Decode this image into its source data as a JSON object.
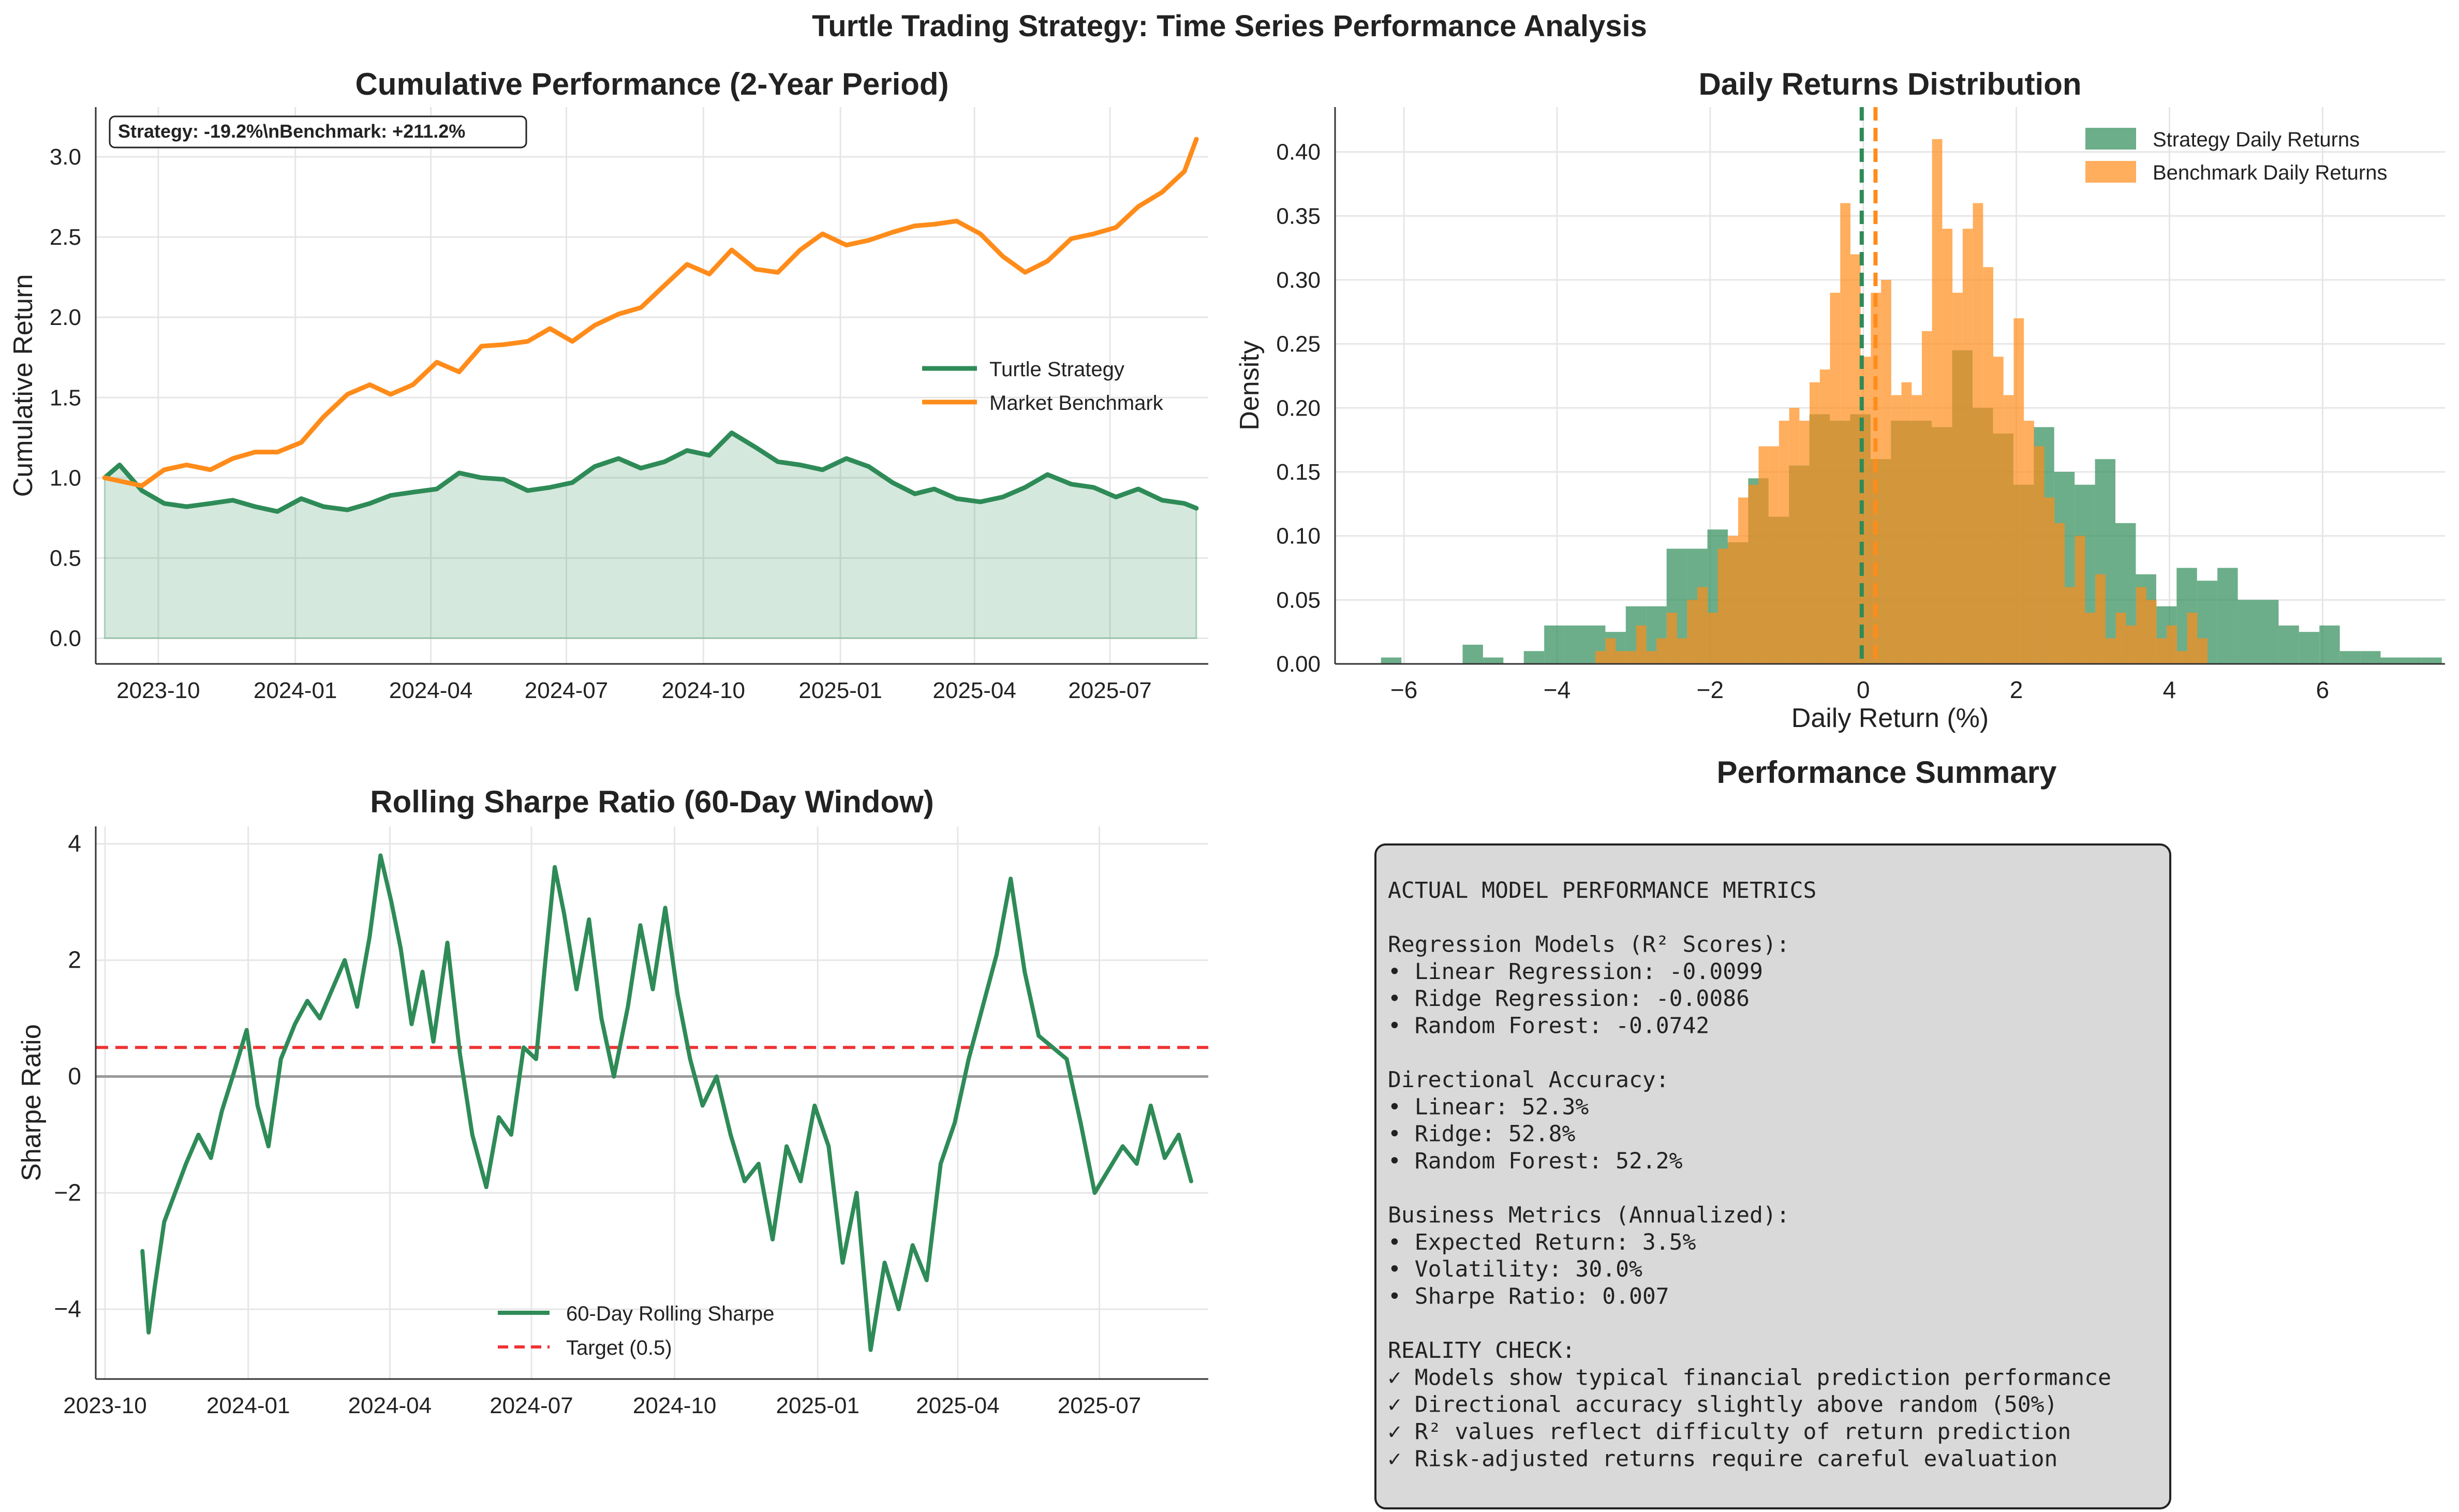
{
  "figure_title": "Turtle Trading Strategy: Time Series Performance Analysis",
  "colors": {
    "strategy": "#2e8b57",
    "benchmark": "#ff8c1a",
    "strategy_fill": "#2e8b57",
    "target": "#ee3333",
    "grid": "#e6e6e6",
    "summary_bg": "#d9d9d9"
  },
  "chart_data": [
    {
      "id": "cumulative",
      "type": "line",
      "title": "Cumulative Performance (2-Year Period)",
      "xlabel": "",
      "ylabel": "Cumulative Return",
      "x_range": [
        "2023-08-20",
        "2025-09-05"
      ],
      "ylim": [
        -0.16,
        3.31
      ],
      "yticks": [
        0.0,
        0.5,
        1.0,
        1.5,
        2.0,
        2.5,
        3.0
      ],
      "ytick_labels": [
        "0.0",
        "0.5",
        "1.0",
        "1.5",
        "2.0",
        "2.5",
        "3.0"
      ],
      "xticks": [
        "2023-10-01",
        "2024-01-01",
        "2024-04-01",
        "2024-07-01",
        "2024-10-01",
        "2025-01-01",
        "2025-04-01",
        "2025-07-01"
      ],
      "xtick_labels": [
        "2023-10",
        "2024-01",
        "2024-04",
        "2024-07",
        "2024-10",
        "2025-01",
        "2025-04",
        "2025-07"
      ],
      "grid": true,
      "legend": "center-right",
      "annotation": "Strategy: -19.2%\\nBenchmark: +211.2%",
      "series": [
        {
          "name": "Turtle Strategy",
          "color": "#2e8b57",
          "fill": true,
          "x": [
            "2023-08-26",
            "2023-09-05",
            "2023-09-20",
            "2023-10-05",
            "2023-10-20",
            "2023-11-05",
            "2023-11-20",
            "2023-12-05",
            "2023-12-20",
            "2024-01-05",
            "2024-01-20",
            "2024-02-05",
            "2024-02-20",
            "2024-03-05",
            "2024-03-20",
            "2024-04-05",
            "2024-04-20",
            "2024-05-05",
            "2024-05-20",
            "2024-06-05",
            "2024-06-20",
            "2024-07-05",
            "2024-07-20",
            "2024-08-05",
            "2024-08-20",
            "2024-09-05",
            "2024-09-20",
            "2024-10-05",
            "2024-10-20",
            "2024-11-05",
            "2024-11-20",
            "2024-12-05",
            "2024-12-20",
            "2025-01-05",
            "2025-01-20",
            "2025-02-05",
            "2025-02-20",
            "2025-03-05",
            "2025-03-20",
            "2025-04-05",
            "2025-04-20",
            "2025-05-05",
            "2025-05-20",
            "2025-06-05",
            "2025-06-20",
            "2025-07-05",
            "2025-07-20",
            "2025-08-05",
            "2025-08-20",
            "2025-08-28"
          ],
          "y": [
            1.0,
            1.08,
            0.92,
            0.84,
            0.82,
            0.84,
            0.86,
            0.82,
            0.79,
            0.87,
            0.82,
            0.8,
            0.84,
            0.89,
            0.91,
            0.93,
            1.03,
            1.0,
            0.99,
            0.92,
            0.94,
            0.97,
            1.07,
            1.12,
            1.06,
            1.1,
            1.17,
            1.14,
            1.28,
            1.19,
            1.1,
            1.08,
            1.05,
            1.12,
            1.07,
            0.97,
            0.9,
            0.93,
            0.87,
            0.85,
            0.88,
            0.94,
            1.02,
            0.96,
            0.94,
            0.88,
            0.93,
            0.86,
            0.84,
            0.81
          ]
        },
        {
          "name": "Market Benchmark",
          "color": "#ff8c1a",
          "fill": false,
          "x": [
            "2023-08-26",
            "2023-09-05",
            "2023-09-20",
            "2023-10-05",
            "2023-10-20",
            "2023-11-05",
            "2023-11-20",
            "2023-12-05",
            "2023-12-20",
            "2024-01-05",
            "2024-01-20",
            "2024-02-05",
            "2024-02-20",
            "2024-03-05",
            "2024-03-20",
            "2024-04-05",
            "2024-04-20",
            "2024-05-05",
            "2024-05-20",
            "2024-06-05",
            "2024-06-20",
            "2024-07-05",
            "2024-07-20",
            "2024-08-05",
            "2024-08-20",
            "2024-09-05",
            "2024-09-20",
            "2024-10-05",
            "2024-10-20",
            "2024-11-05",
            "2024-11-20",
            "2024-12-05",
            "2024-12-20",
            "2025-01-05",
            "2025-01-20",
            "2025-02-05",
            "2025-02-20",
            "2025-03-05",
            "2025-03-20",
            "2025-04-05",
            "2025-04-20",
            "2025-05-05",
            "2025-05-20",
            "2025-06-05",
            "2025-06-20",
            "2025-07-05",
            "2025-07-20",
            "2025-08-05",
            "2025-08-20",
            "2025-08-28"
          ],
          "y": [
            1.0,
            0.98,
            0.95,
            1.05,
            1.08,
            1.05,
            1.12,
            1.16,
            1.16,
            1.22,
            1.38,
            1.52,
            1.58,
            1.52,
            1.58,
            1.72,
            1.66,
            1.82,
            1.83,
            1.85,
            1.93,
            1.85,
            1.95,
            2.02,
            2.06,
            2.2,
            2.33,
            2.27,
            2.42,
            2.3,
            2.28,
            2.42,
            2.52,
            2.45,
            2.48,
            2.53,
            2.57,
            2.58,
            2.6,
            2.52,
            2.38,
            2.28,
            2.35,
            2.49,
            2.52,
            2.56,
            2.69,
            2.78,
            2.91,
            3.11
          ]
        }
      ]
    },
    {
      "id": "distribution",
      "type": "bar",
      "title": "Daily Returns Distribution",
      "xlabel": "Daily Return (%)",
      "ylabel": "Density",
      "xlim": [
        -6.9,
        7.6
      ],
      "ylim": [
        0,
        0.435
      ],
      "xticks": [
        -6,
        -4,
        -2,
        0,
        2,
        4,
        6
      ],
      "xtick_labels": [
        "−6",
        "−4",
        "−2",
        "0",
        "2",
        "4",
        "6"
      ],
      "yticks": [
        0.0,
        0.05,
        0.1,
        0.15,
        0.2,
        0.25,
        0.3,
        0.35,
        0.4
      ],
      "ytick_labels": [
        "0.00",
        "0.05",
        "0.10",
        "0.15",
        "0.20",
        "0.25",
        "0.30",
        "0.35",
        "0.40"
      ],
      "grid": true,
      "legend": "top-right",
      "series": [
        {
          "name": "Strategy Daily Returns",
          "color": "#2e8b57",
          "alpha": 0.7,
          "mean": -0.02,
          "bin_start": -6.3,
          "bin_width": 0.2665,
          "values": [
            0.005,
            0,
            0,
            0,
            0.015,
            0.005,
            0,
            0.01,
            0.03,
            0.03,
            0.03,
            0.025,
            0.045,
            0.045,
            0.09,
            0.09,
            0.105,
            0.095,
            0.145,
            0.115,
            0.155,
            0.195,
            0.19,
            0.195,
            0.16,
            0.19,
            0.19,
            0.185,
            0.245,
            0.2,
            0.18,
            0.14,
            0.185,
            0.15,
            0.14,
            0.16,
            0.11,
            0.07,
            0.045,
            0.075,
            0.065,
            0.075,
            0.05,
            0.05,
            0.03,
            0.025,
            0.03,
            0.01,
            0.01,
            0.005,
            0.005,
            0.005,
            0,
            0,
            0.005,
            0,
            0,
            0,
            0,
            0,
            0,
            0,
            0,
            0,
            0.005
          ]
        },
        {
          "name": "Benchmark Daily Returns",
          "color": "#ff8c1a",
          "alpha": 0.7,
          "mean": 0.16,
          "bin_start": -3.5,
          "bin_width": 0.1333,
          "values": [
            0.01,
            0.02,
            0.01,
            0.01,
            0.03,
            0.01,
            0.02,
            0.04,
            0.02,
            0.05,
            0.06,
            0.04,
            0.09,
            0.1,
            0.13,
            0.14,
            0.17,
            0.17,
            0.19,
            0.2,
            0.19,
            0.22,
            0.23,
            0.29,
            0.36,
            0.32,
            0.24,
            0.29,
            0.3,
            0.21,
            0.22,
            0.21,
            0.26,
            0.41,
            0.34,
            0.29,
            0.34,
            0.36,
            0.31,
            0.24,
            0.21,
            0.27,
            0.19,
            0.17,
            0.13,
            0.11,
            0.06,
            0.1,
            0.04,
            0.07,
            0.02,
            0.04,
            0.03,
            0.06,
            0.05,
            0.02,
            0.03,
            0.01,
            0.04,
            0.02
          ]
        }
      ]
    },
    {
      "id": "sharpe",
      "type": "line",
      "title": "Rolling Sharpe Ratio (60-Day Window)",
      "xlabel": "",
      "ylabel": "Sharpe Ratio",
      "x_range": [
        "2023-09-25",
        "2025-09-09"
      ],
      "ylim": [
        -5.2,
        4.3
      ],
      "yticks": [
        -4,
        -2,
        0,
        2,
        4
      ],
      "ytick_labels": [
        "−4",
        "−2",
        "0",
        "2",
        "4"
      ],
      "xticks": [
        "2023-10-01",
        "2024-01-01",
        "2024-04-01",
        "2024-07-01",
        "2024-10-01",
        "2025-01-01",
        "2025-04-01",
        "2025-07-01"
      ],
      "xtick_labels": [
        "2023-10",
        "2024-01",
        "2024-04",
        "2024-07",
        "2024-10",
        "2025-01",
        "2025-04",
        "2025-07"
      ],
      "grid": true,
      "legend": "bottom-center",
      "target": 0.5,
      "target_label": "Target (0.5)",
      "series": [
        {
          "name": "60-Day Rolling Sharpe",
          "color": "#2e8b57",
          "x": [
            "2023-10-25",
            "2023-10-29",
            "2023-11-02",
            "2023-11-08",
            "2023-11-15",
            "2023-11-22",
            "2023-11-30",
            "2023-12-08",
            "2023-12-15",
            "2023-12-22",
            "2023-12-31",
            "2024-01-07",
            "2024-01-14",
            "2024-01-22",
            "2024-01-31",
            "2024-02-08",
            "2024-02-16",
            "2024-02-24",
            "2024-03-03",
            "2024-03-11",
            "2024-03-19",
            "2024-03-26",
            "2024-04-02",
            "2024-04-08",
            "2024-04-15",
            "2024-04-22",
            "2024-04-29",
            "2024-05-08",
            "2024-05-16",
            "2024-05-24",
            "2024-06-02",
            "2024-06-10",
            "2024-06-18",
            "2024-06-26",
            "2024-07-04",
            "2024-07-10",
            "2024-07-16",
            "2024-07-22",
            "2024-07-30",
            "2024-08-07",
            "2024-08-15",
            "2024-08-23",
            "2024-09-01",
            "2024-09-09",
            "2024-09-17",
            "2024-09-25",
            "2024-10-03",
            "2024-10-11",
            "2024-10-19",
            "2024-10-28",
            "2024-11-06",
            "2024-11-15",
            "2024-11-24",
            "2024-12-03",
            "2024-12-12",
            "2024-12-21",
            "2024-12-30",
            "2025-01-08",
            "2025-01-17",
            "2025-01-26",
            "2025-02-04",
            "2025-02-13",
            "2025-02-22",
            "2025-03-03",
            "2025-03-12",
            "2025-03-21",
            "2025-03-30",
            "2025-04-08",
            "2025-04-17",
            "2025-04-26",
            "2025-05-05",
            "2025-05-14",
            "2025-05-23",
            "2025-06-01",
            "2025-06-10",
            "2025-06-19",
            "2025-06-28",
            "2025-07-07",
            "2025-07-16",
            "2025-07-25",
            "2025-08-03",
            "2025-08-12",
            "2025-08-21",
            "2025-08-29"
          ],
          "y": [
            -3.0,
            -4.4,
            -3.6,
            -2.5,
            -2.0,
            -1.5,
            -1.0,
            -1.4,
            -0.6,
            0.0,
            0.8,
            -0.5,
            -1.2,
            0.3,
            0.9,
            1.3,
            1.0,
            1.5,
            2.0,
            1.2,
            2.4,
            3.8,
            3.0,
            2.2,
            0.9,
            1.8,
            0.6,
            2.3,
            0.4,
            -1.0,
            -1.9,
            -0.7,
            -1.0,
            0.5,
            0.3,
            2.0,
            3.6,
            2.8,
            1.5,
            2.7,
            1.0,
            0.0,
            1.2,
            2.6,
            1.5,
            2.9,
            1.4,
            0.3,
            -0.5,
            0.0,
            -1.0,
            -1.8,
            -1.5,
            -2.8,
            -1.2,
            -1.8,
            -0.5,
            -1.2,
            -3.2,
            -2.0,
            -4.7,
            -3.2,
            -4.0,
            -2.9,
            -3.5,
            -1.5,
            -0.8,
            0.3,
            1.2,
            2.1,
            3.4,
            1.8,
            0.7,
            0.5,
            0.3,
            -0.8,
            -2.0,
            -1.6,
            -1.2,
            -1.5,
            -0.5,
            -1.4,
            -1.0,
            -1.8
          ]
        }
      ]
    }
  ],
  "summary": {
    "title": "Performance Summary",
    "lines": [
      "ACTUAL MODEL PERFORMANCE METRICS",
      "",
      "Regression Models (R² Scores):",
      "• Linear Regression: -0.0099",
      "• Ridge Regression: -0.0086",
      "• Random Forest: -0.0742",
      "",
      "Directional Accuracy:",
      "• Linear: 52.3%",
      "• Ridge: 52.8%",
      "• Random Forest: 52.2%",
      "",
      "Business Metrics (Annualized):",
      "• Expected Return: 3.5%",
      "• Volatility: 30.0%",
      "• Sharpe Ratio: 0.007",
      "",
      "REALITY CHECK:",
      "✓ Models show typical financial prediction performance",
      "✓ Directional accuracy slightly above random (50%)",
      "✓ R² values reflect difficulty of return prediction",
      "✓ Risk-adjusted returns require careful evaluation"
    ]
  }
}
